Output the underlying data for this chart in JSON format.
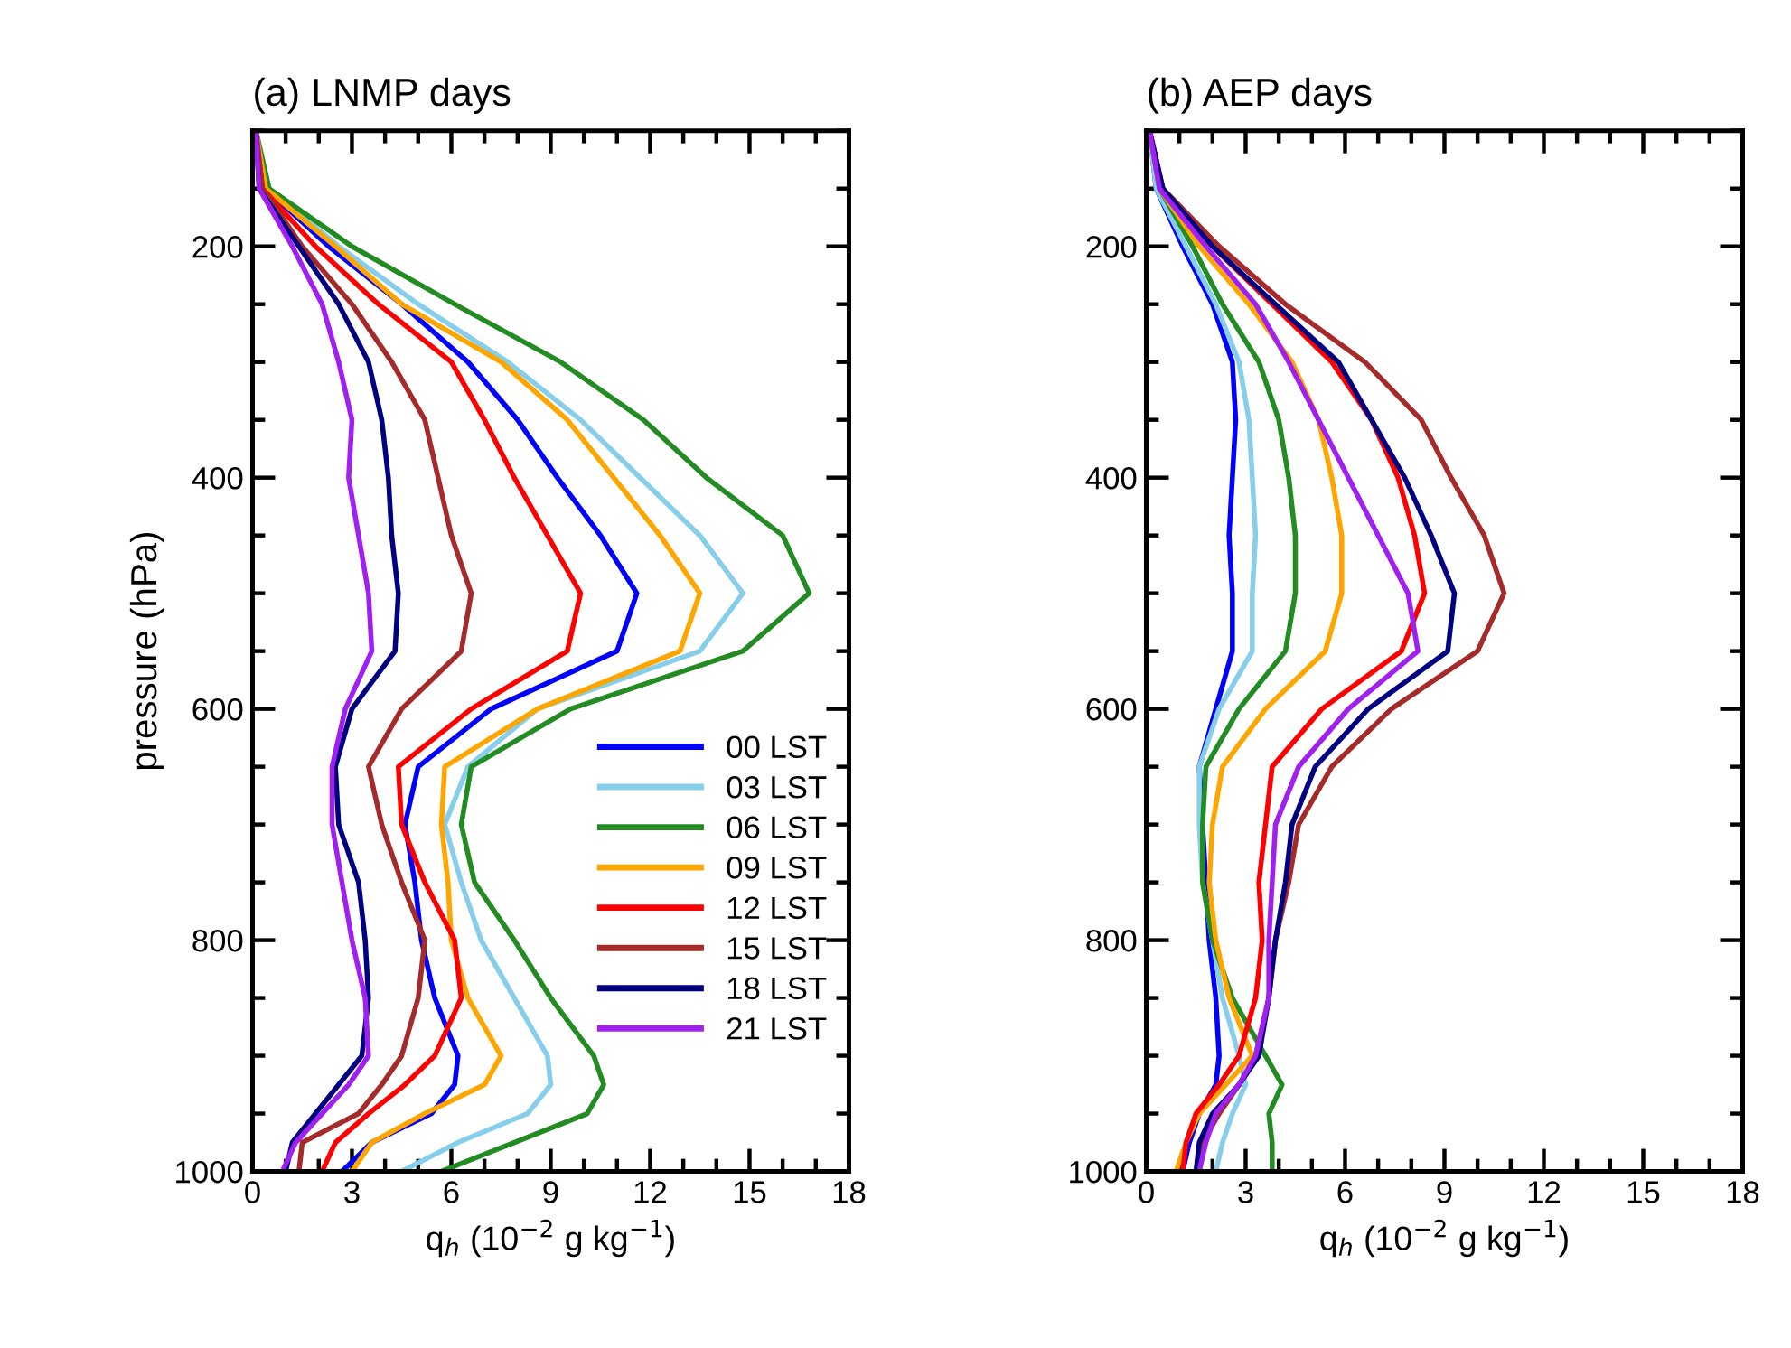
{
  "chart_data": [
    {
      "type": "line",
      "title": "(a) LNMP days",
      "xlabel": "q$_{h}$ (10$^{−2}$ g kg$^{−1}$)",
      "ylabel": "pressure (hPa)",
      "xlim": [
        0,
        18
      ],
      "xticks": [
        0,
        3,
        6,
        9,
        12,
        15,
        18
      ],
      "ylim": [
        1000,
        100
      ],
      "yticks": [
        200,
        400,
        600,
        800,
        1000
      ],
      "legend": "right",
      "grid": false,
      "marker": "none",
      "line_style": "solid",
      "series": [
        {
          "name": "00 LST",
          "color": "#0000ff",
          "x": [
            0.1,
            0.4,
            2.3,
            4.5,
            6.5,
            8.0,
            9.2,
            10.5,
            11.6,
            11.0,
            7.2,
            5.0,
            4.6,
            4.9,
            5.1,
            5.5,
            6.2,
            6.1,
            5.4,
            3.6,
            2.7
          ],
          "values": [
            100,
            150,
            200,
            250,
            300,
            350,
            400,
            450,
            500,
            550,
            600,
            650,
            700,
            750,
            800,
            850,
            900,
            925,
            950,
            975,
            1000
          ]
        },
        {
          "name": "03 LST",
          "color": "#87ceeb",
          "x": [
            0.1,
            0.5,
            2.6,
            5.0,
            7.7,
            9.9,
            11.7,
            13.5,
            14.8,
            13.5,
            8.6,
            6.5,
            5.8,
            6.3,
            6.9,
            7.9,
            8.9,
            9.0,
            8.3,
            6.2,
            4.5
          ],
          "values": [
            100,
            150,
            200,
            250,
            300,
            350,
            400,
            450,
            500,
            550,
            600,
            650,
            700,
            750,
            800,
            850,
            900,
            925,
            950,
            975,
            1000
          ]
        },
        {
          "name": "06 LST",
          "color": "#228b22",
          "x": [
            0.1,
            0.5,
            3.0,
            6.1,
            9.3,
            11.8,
            13.7,
            16.0,
            16.8,
            14.8,
            9.6,
            6.6,
            6.3,
            6.7,
            7.9,
            9.0,
            10.3,
            10.6,
            10.1,
            7.9,
            5.7
          ],
          "values": [
            100,
            150,
            200,
            250,
            300,
            350,
            400,
            450,
            500,
            550,
            600,
            650,
            700,
            750,
            800,
            850,
            900,
            925,
            950,
            975,
            1000
          ]
        },
        {
          "name": "09 LST",
          "color": "#ffa500",
          "x": [
            0.1,
            0.4,
            2.5,
            4.5,
            7.5,
            9.5,
            10.9,
            12.3,
            13.5,
            12.9,
            8.6,
            5.8,
            5.7,
            5.9,
            6.0,
            6.5,
            7.5,
            7.0,
            5.2,
            3.6,
            3.0
          ],
          "values": [
            100,
            150,
            200,
            250,
            300,
            350,
            400,
            450,
            500,
            550,
            600,
            650,
            700,
            750,
            800,
            850,
            900,
            925,
            950,
            975,
            1000
          ]
        },
        {
          "name": "12 LST",
          "color": "#ff0000",
          "x": [
            0.1,
            0.3,
            1.9,
            3.8,
            6.0,
            7.0,
            7.9,
            8.9,
            9.9,
            9.5,
            6.6,
            4.4,
            4.5,
            5.2,
            6.1,
            6.3,
            5.5,
            4.6,
            3.5,
            2.5,
            2.1
          ],
          "values": [
            100,
            150,
            200,
            250,
            300,
            350,
            400,
            450,
            500,
            550,
            600,
            650,
            700,
            750,
            800,
            850,
            900,
            925,
            950,
            975,
            1000
          ]
        },
        {
          "name": "15 LST",
          "color": "#a52a2a",
          "x": [
            0.1,
            0.3,
            1.5,
            3.0,
            4.2,
            5.2,
            5.6,
            6.0,
            6.6,
            6.3,
            4.5,
            3.5,
            3.9,
            4.5,
            5.2,
            5.0,
            4.5,
            3.9,
            3.2,
            1.5,
            1.4
          ],
          "values": [
            100,
            150,
            200,
            250,
            300,
            350,
            400,
            450,
            500,
            550,
            600,
            650,
            700,
            750,
            800,
            850,
            900,
            925,
            950,
            975,
            1000
          ]
        },
        {
          "name": "18 LST",
          "color": "#000080",
          "x": [
            0.1,
            0.2,
            1.4,
            2.6,
            3.5,
            3.9,
            4.1,
            4.2,
            4.4,
            4.3,
            3.0,
            2.5,
            2.6,
            3.2,
            3.4,
            3.5,
            3.3,
            2.6,
            1.9,
            1.2,
            1.0
          ],
          "values": [
            100,
            150,
            200,
            250,
            300,
            350,
            400,
            450,
            500,
            550,
            600,
            650,
            700,
            750,
            800,
            850,
            900,
            925,
            950,
            975,
            1000
          ]
        },
        {
          "name": "21 LST",
          "color": "#a020f0",
          "x": [
            0.1,
            0.2,
            1.2,
            2.1,
            2.6,
            3.0,
            2.9,
            3.2,
            3.5,
            3.6,
            2.8,
            2.4,
            2.4,
            2.7,
            3.0,
            3.4,
            3.5,
            2.9,
            2.1,
            1.3,
            0.9
          ],
          "values": [
            100,
            150,
            200,
            250,
            300,
            350,
            400,
            450,
            500,
            550,
            600,
            650,
            700,
            750,
            800,
            850,
            900,
            925,
            950,
            975,
            1000
          ]
        }
      ]
    },
    {
      "type": "line",
      "title": "(b) AEP days",
      "xlabel": "q$_{h}$ (10$^{−2}$ g kg$^{−1}$)",
      "xlim": [
        0,
        18
      ],
      "xticks": [
        0,
        3,
        6,
        9,
        12,
        15,
        18
      ],
      "ylim": [
        1000,
        100
      ],
      "yticks": [
        200,
        400,
        600,
        800,
        1000
      ],
      "legend": false,
      "grid": false,
      "marker": "none",
      "line_style": "solid",
      "series": [
        {
          "color": "#0000ff",
          "x": [
            0.1,
            0.3,
            1.1,
            2.0,
            2.6,
            2.7,
            2.6,
            2.5,
            2.6,
            2.6,
            2.1,
            1.6,
            1.7,
            1.8,
            1.9,
            2.1,
            2.2,
            2.1,
            1.6,
            1.3,
            1.1
          ],
          "values": [
            100,
            150,
            200,
            250,
            300,
            350,
            400,
            450,
            500,
            550,
            600,
            650,
            700,
            750,
            800,
            850,
            900,
            925,
            950,
            975,
            1000
          ]
        },
        {
          "color": "#87ceeb",
          "x": [
            0.1,
            0.3,
            1.2,
            2.1,
            2.8,
            3.1,
            3.2,
            3.3,
            3.2,
            3.2,
            2.2,
            1.6,
            1.6,
            1.7,
            2.0,
            2.3,
            2.8,
            3.0,
            2.6,
            2.3,
            2.1
          ],
          "values": [
            100,
            150,
            200,
            250,
            300,
            350,
            400,
            450,
            500,
            550,
            600,
            650,
            700,
            750,
            800,
            850,
            900,
            925,
            950,
            975,
            1000
          ]
        },
        {
          "color": "#228b22",
          "x": [
            0.1,
            0.4,
            1.4,
            2.3,
            3.4,
            4.0,
            4.3,
            4.5,
            4.5,
            4.2,
            2.8,
            1.8,
            1.7,
            1.7,
            2.0,
            2.6,
            3.6,
            4.1,
            3.7,
            3.8,
            3.8
          ],
          "values": [
            100,
            150,
            200,
            250,
            300,
            350,
            400,
            450,
            500,
            550,
            600,
            650,
            700,
            750,
            800,
            850,
            900,
            925,
            950,
            975,
            1000
          ]
        },
        {
          "color": "#ffa500",
          "x": [
            0.1,
            0.4,
            1.6,
            3.1,
            4.4,
            5.2,
            5.6,
            5.9,
            5.9,
            5.4,
            3.6,
            2.3,
            2.0,
            1.9,
            2.1,
            2.5,
            3.2,
            2.4,
            1.6,
            1.2,
            0.9
          ],
          "values": [
            100,
            150,
            200,
            250,
            300,
            350,
            400,
            450,
            500,
            550,
            600,
            650,
            700,
            750,
            800,
            850,
            900,
            925,
            950,
            975,
            1000
          ]
        },
        {
          "color": "#ff0000",
          "x": [
            0.1,
            0.5,
            2.0,
            3.8,
            5.6,
            6.8,
            7.6,
            8.1,
            8.4,
            7.7,
            5.3,
            3.8,
            3.6,
            3.4,
            3.5,
            3.3,
            2.8,
            2.2,
            1.5,
            1.2,
            1.1
          ],
          "values": [
            100,
            150,
            200,
            250,
            300,
            350,
            400,
            450,
            500,
            550,
            600,
            650,
            700,
            750,
            800,
            850,
            900,
            925,
            950,
            975,
            1000
          ]
        },
        {
          "color": "#a52a2a",
          "x": [
            0.1,
            0.5,
            2.2,
            4.2,
            6.6,
            8.3,
            9.2,
            10.2,
            10.8,
            10.0,
            7.4,
            5.6,
            4.6,
            4.3,
            3.9,
            3.7,
            3.3,
            2.8,
            2.2,
            1.7,
            1.5
          ],
          "values": [
            100,
            150,
            200,
            250,
            300,
            350,
            400,
            450,
            500,
            550,
            600,
            650,
            700,
            750,
            800,
            850,
            900,
            925,
            950,
            975,
            1000
          ]
        },
        {
          "color": "#000080",
          "x": [
            0.1,
            0.5,
            2.0,
            3.9,
            5.8,
            6.8,
            7.8,
            8.6,
            9.3,
            9.1,
            6.7,
            5.1,
            4.4,
            4.2,
            3.9,
            3.7,
            3.4,
            2.8,
            2.0,
            1.6,
            1.5
          ],
          "values": [
            100,
            150,
            200,
            250,
            300,
            350,
            400,
            450,
            500,
            550,
            600,
            650,
            700,
            750,
            800,
            850,
            900,
            925,
            950,
            975,
            1000
          ]
        },
        {
          "color": "#a020f0",
          "x": [
            0.1,
            0.4,
            1.8,
            3.3,
            4.3,
            5.2,
            6.1,
            7.0,
            7.9,
            8.2,
            6.1,
            4.6,
            3.9,
            3.8,
            3.7,
            3.7,
            3.3,
            2.8,
            2.1,
            1.8,
            1.6
          ],
          "values": [
            100,
            150,
            200,
            250,
            300,
            350,
            400,
            450,
            500,
            550,
            600,
            650,
            700,
            750,
            800,
            850,
            900,
            925,
            950,
            975,
            1000
          ]
        }
      ]
    }
  ]
}
